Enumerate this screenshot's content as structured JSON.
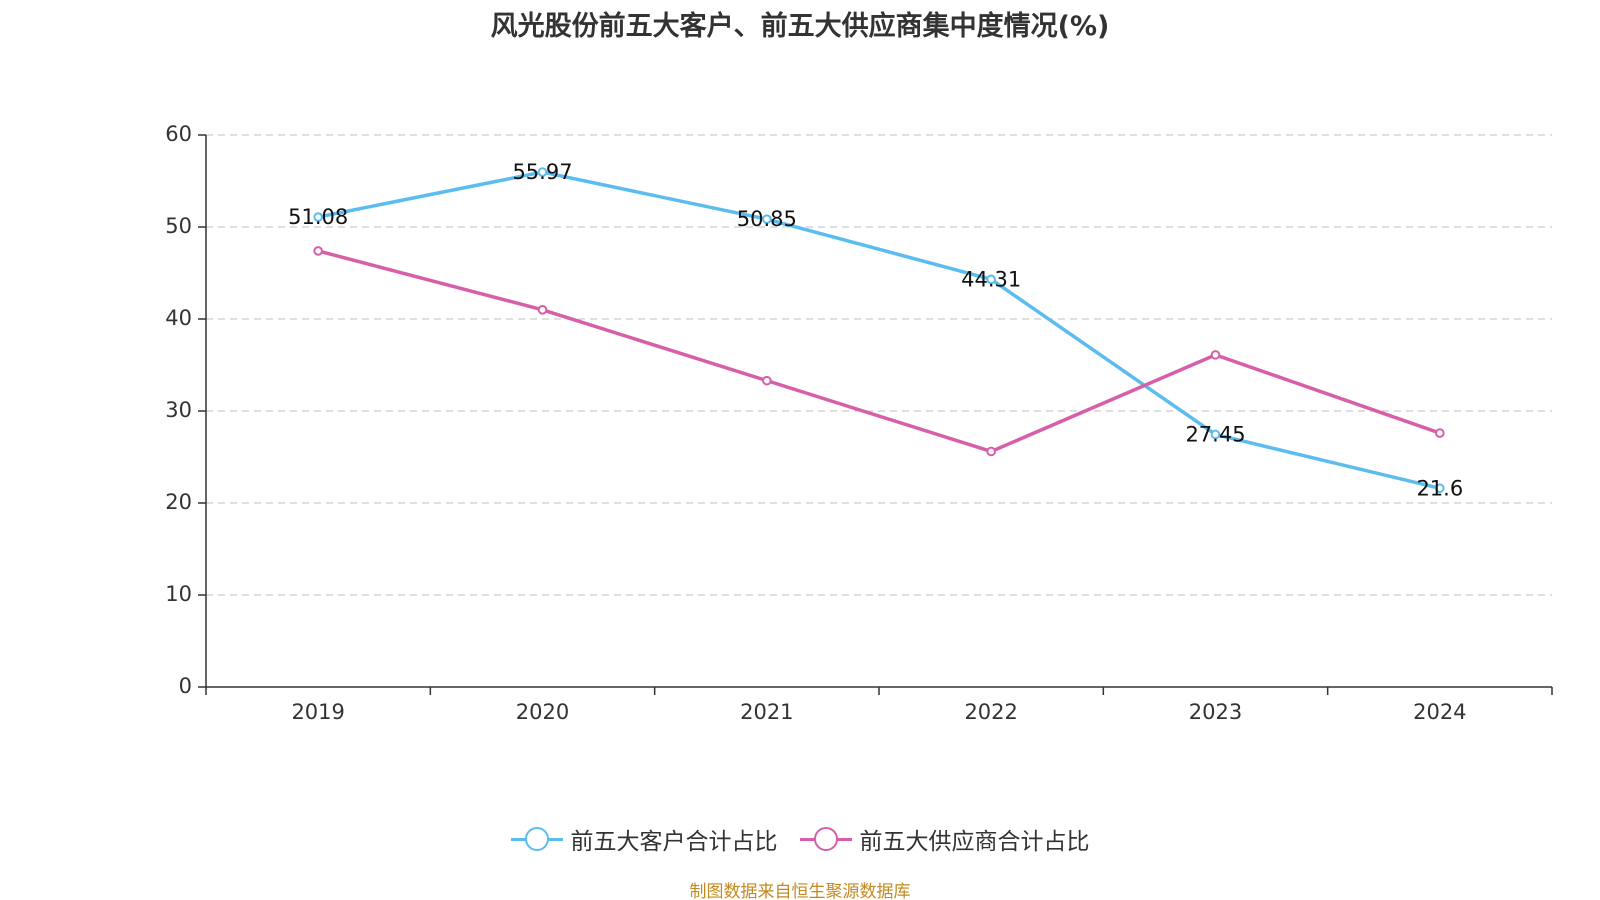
{
  "title": "风光股份前五大客户、前五大供应商集中度情况(%)",
  "source": "制图数据来自恒生聚源数据库",
  "colors": {
    "customer": "#5bbcf0",
    "supplier": "#d75fa9",
    "grid": "#cccccc",
    "axis": "#333333",
    "source": "#c28a1e"
  },
  "chart_data": {
    "type": "line",
    "title": "风光股份前五大客户、前五大供应商集中度情况(%)",
    "xlabel": "",
    "ylabel": "",
    "categories": [
      "2019",
      "2020",
      "2021",
      "2022",
      "2023",
      "2024"
    ],
    "ylim": [
      0,
      60
    ],
    "yticks": [
      0,
      10,
      20,
      30,
      40,
      50,
      60
    ],
    "grid": true,
    "legend_position": "bottom",
    "series": [
      {
        "name": "前五大客户合计占比",
        "color": "#5bbcf0",
        "values": [
          51.08,
          55.97,
          50.85,
          44.31,
          27.45,
          21.6
        ],
        "labels": [
          "51.08",
          "55.97",
          "50.85",
          "44.31",
          "27.45",
          "21.6"
        ],
        "show_labels": true
      },
      {
        "name": "前五大供应商合计占比",
        "color": "#d75fa9",
        "values": [
          47.4,
          41.0,
          33.3,
          25.6,
          36.1,
          27.6
        ],
        "labels": [],
        "show_labels": false
      }
    ]
  },
  "legend": {
    "items": [
      "前五大客户合计占比",
      "前五大供应商合计占比"
    ]
  }
}
